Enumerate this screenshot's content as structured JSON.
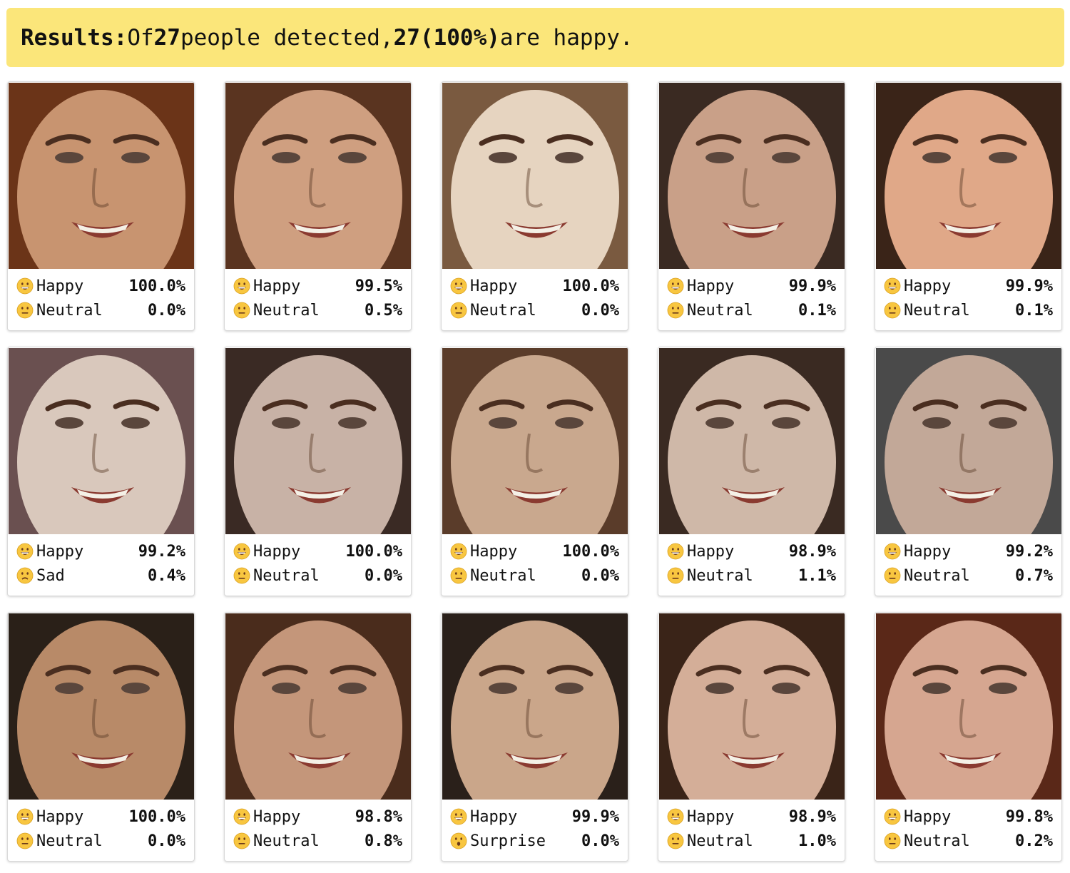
{
  "banner": {
    "label": "Results:",
    "text1": "Of",
    "total": "27",
    "text2": "people detected,",
    "happy_count": "27",
    "happy_pct": "(100%)",
    "text3": "are happy."
  },
  "colors": {
    "banner_bg": "#fbe67a",
    "emoji_fill": "#f8c640"
  },
  "cards": [
    {
      "tone": "#c89470",
      "hair": "#6b3418",
      "e1": {
        "icon": "grinning-face-icon",
        "label": "Happy",
        "value": "100.0%"
      },
      "e2": {
        "icon": "neutral-face-icon",
        "label": "Neutral",
        "value": "0.0%"
      }
    },
    {
      "tone": "#cf9f80",
      "hair": "#5a3420",
      "e1": {
        "icon": "grinning-face-icon",
        "label": "Happy",
        "value": "99.5%"
      },
      "e2": {
        "icon": "neutral-face-icon",
        "label": "Neutral",
        "value": "0.5%"
      }
    },
    {
      "tone": "#e6d4c0",
      "hair": "#7a5a40",
      "e1": {
        "icon": "grinning-face-icon",
        "label": "Happy",
        "value": "100.0%"
      },
      "e2": {
        "icon": "neutral-face-icon",
        "label": "Neutral",
        "value": "0.0%"
      }
    },
    {
      "tone": "#c9a088",
      "hair": "#3a2a22",
      "e1": {
        "icon": "grinning-face-icon",
        "label": "Happy",
        "value": "99.9%"
      },
      "e2": {
        "icon": "neutral-face-icon",
        "label": "Neutral",
        "value": "0.1%"
      }
    },
    {
      "tone": "#e0a888",
      "hair": "#3a2418",
      "e1": {
        "icon": "grinning-face-icon",
        "label": "Happy",
        "value": "99.9%"
      },
      "e2": {
        "icon": "neutral-face-icon",
        "label": "Neutral",
        "value": "0.1%"
      }
    },
    {
      "tone": "#d9c8bc",
      "hair": "#6a5050",
      "e1": {
        "icon": "grinning-face-icon",
        "label": "Happy",
        "value": "99.2%"
      },
      "e2": {
        "icon": "sad-face-icon",
        "label": "Sad",
        "value": "0.4%"
      }
    },
    {
      "tone": "#c8b2a6",
      "hair": "#3a2a24",
      "e1": {
        "icon": "grinning-face-icon",
        "label": "Happy",
        "value": "100.0%"
      },
      "e2": {
        "icon": "neutral-face-icon",
        "label": "Neutral",
        "value": "0.0%"
      }
    },
    {
      "tone": "#c9a88e",
      "hair": "#5a3c2a",
      "e1": {
        "icon": "grinning-face-icon",
        "label": "Happy",
        "value": "100.0%"
      },
      "e2": {
        "icon": "neutral-face-icon",
        "label": "Neutral",
        "value": "0.0%"
      }
    },
    {
      "tone": "#cfb8a8",
      "hair": "#3a2a22",
      "e1": {
        "icon": "grinning-face-icon",
        "label": "Happy",
        "value": "98.9%"
      },
      "e2": {
        "icon": "neutral-face-icon",
        "label": "Neutral",
        "value": "1.1%"
      }
    },
    {
      "tone": "#c2a898",
      "hair": "#4a4a4a",
      "e1": {
        "icon": "grinning-face-icon",
        "label": "Happy",
        "value": "99.2%"
      },
      "e2": {
        "icon": "neutral-face-icon",
        "label": "Neutral",
        "value": "0.7%"
      }
    },
    {
      "tone": "#b88a68",
      "hair": "#2a2018",
      "e1": {
        "icon": "grinning-face-icon",
        "label": "Happy",
        "value": "100.0%"
      },
      "e2": {
        "icon": "neutral-face-icon",
        "label": "Neutral",
        "value": "0.0%"
      }
    },
    {
      "tone": "#c4967a",
      "hair": "#4a2c1c",
      "e1": {
        "icon": "grinning-face-icon",
        "label": "Happy",
        "value": "98.8%"
      },
      "e2": {
        "icon": "neutral-face-icon",
        "label": "Neutral",
        "value": "0.8%"
      }
    },
    {
      "tone": "#caa68a",
      "hair": "#2a201a",
      "e1": {
        "icon": "grinning-face-icon",
        "label": "Happy",
        "value": "99.9%"
      },
      "e2": {
        "icon": "surprised-face-icon",
        "label": "Surprise",
        "value": "0.0%"
      }
    },
    {
      "tone": "#d4ae98",
      "hair": "#3a2418",
      "e1": {
        "icon": "grinning-face-icon",
        "label": "Happy",
        "value": "98.9%"
      },
      "e2": {
        "icon": "neutral-face-icon",
        "label": "Neutral",
        "value": "1.0%"
      }
    },
    {
      "tone": "#d6a690",
      "hair": "#5a2818",
      "e1": {
        "icon": "grinning-face-icon",
        "label": "Happy",
        "value": "99.8%"
      },
      "e2": {
        "icon": "neutral-face-icon",
        "label": "Neutral",
        "value": "0.2%"
      }
    }
  ]
}
